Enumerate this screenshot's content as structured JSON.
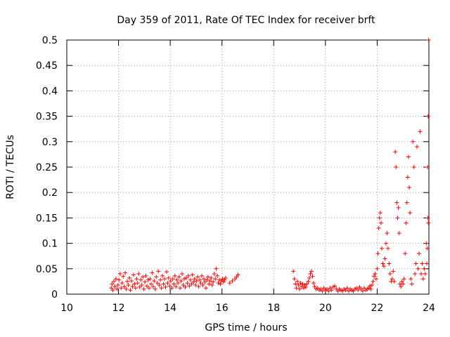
{
  "chart_data": {
    "type": "scatter",
    "title": "Day 359 of 2011, Rate Of TEC Index for receiver brft",
    "xlabel": "GPS time / hours",
    "ylabel": "ROTI / TECUs",
    "xlim": [
      10,
      24
    ],
    "ylim": [
      0,
      0.5
    ],
    "x_ticks": [
      "10",
      "12",
      "14",
      "16",
      "18",
      "20",
      "22",
      "24"
    ],
    "y_ticks": [
      "0",
      "0.05",
      "0.1",
      "0.15",
      "0.2",
      "0.25",
      "0.3",
      "0.35",
      "0.4",
      "0.45",
      "0.5"
    ],
    "grid": true,
    "marker": "+",
    "series": [
      {
        "color": "#ff0000",
        "points": [
          [
            11.72,
            0.012
          ],
          [
            11.75,
            0.02
          ],
          [
            11.78,
            0.008
          ],
          [
            11.82,
            0.025
          ],
          [
            11.86,
            0.015
          ],
          [
            11.9,
            0.03
          ],
          [
            11.94,
            0.01
          ],
          [
            11.98,
            0.018
          ],
          [
            12.02,
            0.028
          ],
          [
            12.06,
            0.04
          ],
          [
            12.1,
            0.012
          ],
          [
            12.14,
            0.022
          ],
          [
            12.18,
            0.035
          ],
          [
            12.22,
            0.015
          ],
          [
            12.26,
            0.042
          ],
          [
            12.3,
            0.01
          ],
          [
            12.34,
            0.025
          ],
          [
            12.38,
            0.018
          ],
          [
            12.42,
            0.032
          ],
          [
            12.46,
            0.008
          ],
          [
            12.5,
            0.026
          ],
          [
            12.54,
            0.015
          ],
          [
            12.58,
            0.038
          ],
          [
            12.62,
            0.02
          ],
          [
            12.66,
            0.012
          ],
          [
            12.7,
            0.03
          ],
          [
            12.74,
            0.022
          ],
          [
            12.78,
            0.04
          ],
          [
            12.82,
            0.014
          ],
          [
            12.86,
            0.028
          ],
          [
            12.9,
            0.018
          ],
          [
            12.94,
            0.034
          ],
          [
            12.98,
            0.01
          ],
          [
            13.02,
            0.024
          ],
          [
            13.06,
            0.036
          ],
          [
            13.1,
            0.016
          ],
          [
            13.14,
            0.028
          ],
          [
            13.18,
            0.012
          ],
          [
            13.22,
            0.03
          ],
          [
            13.26,
            0.02
          ],
          [
            13.3,
            0.042
          ],
          [
            13.34,
            0.015
          ],
          [
            13.38,
            0.026
          ],
          [
            13.42,
            0.01
          ],
          [
            13.46,
            0.034
          ],
          [
            13.5,
            0.022
          ],
          [
            13.54,
            0.045
          ],
          [
            13.58,
            0.018
          ],
          [
            13.62,
            0.028
          ],
          [
            13.66,
            0.012
          ],
          [
            13.7,
            0.036
          ],
          [
            13.74,
            0.02
          ],
          [
            13.78,
            0.03
          ],
          [
            13.82,
            0.014
          ],
          [
            13.86,
            0.044
          ],
          [
            13.9,
            0.022
          ],
          [
            13.94,
            0.032
          ],
          [
            13.98,
            0.016
          ],
          [
            14.02,
            0.026
          ],
          [
            14.06,
            0.012
          ],
          [
            14.1,
            0.03
          ],
          [
            14.14,
            0.02
          ],
          [
            14.18,
            0.036
          ],
          [
            14.22,
            0.015
          ],
          [
            14.26,
            0.028
          ],
          [
            14.3,
            0.022
          ],
          [
            14.34,
            0.034
          ],
          [
            14.38,
            0.012
          ],
          [
            14.42,
            0.026
          ],
          [
            14.46,
            0.04
          ],
          [
            14.5,
            0.018
          ],
          [
            14.54,
            0.03
          ],
          [
            14.58,
            0.014
          ],
          [
            14.62,
            0.032
          ],
          [
            14.66,
            0.022
          ],
          [
            14.7,
            0.036
          ],
          [
            14.74,
            0.016
          ],
          [
            14.78,
            0.028
          ],
          [
            14.82,
            0.02
          ],
          [
            14.86,
            0.038
          ],
          [
            14.9,
            0.024
          ],
          [
            14.94,
            0.03
          ],
          [
            14.98,
            0.018
          ],
          [
            15.02,
            0.026
          ],
          [
            15.06,
            0.034
          ],
          [
            15.1,
            0.015
          ],
          [
            15.14,
            0.028
          ],
          [
            15.18,
            0.022
          ],
          [
            15.22,
            0.036
          ],
          [
            15.26,
            0.018
          ],
          [
            15.3,
            0.03
          ],
          [
            15.34,
            0.024
          ],
          [
            15.38,
            0.012
          ],
          [
            15.42,
            0.028
          ],
          [
            15.46,
            0.034
          ],
          [
            15.5,
            0.02
          ],
          [
            15.54,
            0.026
          ],
          [
            15.58,
            0.032
          ],
          [
            15.62,
            0.018
          ],
          [
            15.66,
            0.024
          ],
          [
            15.7,
            0.04
          ],
          [
            15.74,
            0.03
          ],
          [
            15.78,
            0.05
          ],
          [
            15.82,
            0.036
          ],
          [
            15.86,
            0.022
          ],
          [
            15.9,
            0.028
          ],
          [
            15.94,
            0.02
          ],
          [
            15.98,
            0.026
          ],
          [
            16.02,
            0.03
          ],
          [
            16.06,
            0.024
          ],
          [
            16.1,
            0.028
          ],
          [
            16.14,
            0.032
          ],
          [
            16.3,
            0.022
          ],
          [
            16.4,
            0.026
          ],
          [
            16.5,
            0.03
          ],
          [
            16.56,
            0.034
          ],
          [
            16.62,
            0.038
          ],
          [
            18.76,
            0.045
          ],
          [
            18.8,
            0.03
          ],
          [
            18.84,
            0.02
          ],
          [
            18.88,
            0.012
          ],
          [
            18.92,
            0.025
          ],
          [
            18.96,
            0.018
          ],
          [
            19.0,
            0.01
          ],
          [
            19.04,
            0.022
          ],
          [
            19.08,
            0.015
          ],
          [
            19.12,
            0.02
          ],
          [
            19.16,
            0.012
          ],
          [
            19.2,
            0.018
          ],
          [
            19.24,
            0.014
          ],
          [
            19.28,
            0.02
          ],
          [
            19.34,
            0.025
          ],
          [
            19.38,
            0.032
          ],
          [
            19.42,
            0.04
          ],
          [
            19.46,
            0.045
          ],
          [
            19.5,
            0.035
          ],
          [
            19.54,
            0.022
          ],
          [
            19.58,
            0.015
          ],
          [
            19.64,
            0.01
          ],
          [
            19.7,
            0.012
          ],
          [
            19.76,
            0.008
          ],
          [
            19.82,
            0.01
          ],
          [
            19.88,
            0.006
          ],
          [
            19.94,
            0.012
          ],
          [
            20.0,
            0.008
          ],
          [
            20.06,
            0.01
          ],
          [
            20.12,
            0.006
          ],
          [
            20.18,
            0.012
          ],
          [
            20.24,
            0.008
          ],
          [
            20.3,
            0.014
          ],
          [
            20.36,
            0.016
          ],
          [
            20.42,
            0.01
          ],
          [
            20.48,
            0.006
          ],
          [
            20.54,
            0.01
          ],
          [
            20.6,
            0.008
          ],
          [
            20.66,
            0.006
          ],
          [
            20.72,
            0.01
          ],
          [
            20.78,
            0.008
          ],
          [
            20.84,
            0.012
          ],
          [
            20.9,
            0.006
          ],
          [
            20.96,
            0.01
          ],
          [
            21.02,
            0.008
          ],
          [
            21.08,
            0.006
          ],
          [
            21.14,
            0.01
          ],
          [
            21.2,
            0.012
          ],
          [
            21.26,
            0.008
          ],
          [
            21.32,
            0.014
          ],
          [
            21.38,
            0.01
          ],
          [
            21.44,
            0.006
          ],
          [
            21.5,
            0.012
          ],
          [
            21.56,
            0.008
          ],
          [
            21.62,
            0.01
          ],
          [
            21.68,
            0.012
          ],
          [
            21.72,
            0.016
          ],
          [
            21.76,
            0.01
          ],
          [
            21.8,
            0.018
          ],
          [
            21.84,
            0.025
          ],
          [
            21.88,
            0.035
          ],
          [
            21.92,
            0.04
          ],
          [
            21.96,
            0.03
          ],
          [
            22.0,
            0.05
          ],
          [
            22.03,
            0.08
          ],
          [
            22.06,
            0.13
          ],
          [
            22.09,
            0.15
          ],
          [
            22.12,
            0.16
          ],
          [
            22.15,
            0.14
          ],
          [
            22.18,
            0.09
          ],
          [
            22.22,
            0.06
          ],
          [
            22.26,
            0.055
          ],
          [
            22.3,
            0.07
          ],
          [
            22.34,
            0.1
          ],
          [
            22.38,
            0.12
          ],
          [
            22.42,
            0.09
          ],
          [
            22.46,
            0.06
          ],
          [
            22.5,
            0.04
          ],
          [
            22.54,
            0.025
          ],
          [
            22.58,
            0.03
          ],
          [
            22.62,
            0.045
          ],
          [
            22.66,
            0.025
          ],
          [
            22.7,
            0.28
          ],
          [
            22.73,
            0.25
          ],
          [
            22.76,
            0.18
          ],
          [
            22.79,
            0.15
          ],
          [
            22.82,
            0.17
          ],
          [
            22.85,
            0.12
          ],
          [
            22.88,
            0.02
          ],
          [
            22.92,
            0.015
          ],
          [
            22.96,
            0.025
          ],
          [
            23.0,
            0.02
          ],
          [
            23.04,
            0.03
          ],
          [
            23.08,
            0.08
          ],
          [
            23.12,
            0.14
          ],
          [
            23.15,
            0.18
          ],
          [
            23.18,
            0.23
          ],
          [
            23.21,
            0.27
          ],
          [
            23.24,
            0.21
          ],
          [
            23.27,
            0.16
          ],
          [
            23.3,
            0.03
          ],
          [
            23.34,
            0.02
          ],
          [
            23.38,
            0.3
          ],
          [
            23.42,
            0.25
          ],
          [
            23.46,
            0.04
          ],
          [
            23.5,
            0.06
          ],
          [
            23.54,
            0.29
          ],
          [
            23.58,
            0.05
          ],
          [
            23.62,
            0.08
          ],
          [
            23.66,
            0.32
          ],
          [
            23.7,
            0.04
          ],
          [
            23.74,
            0.06
          ],
          [
            23.78,
            0.03
          ],
          [
            23.82,
            0.05
          ],
          [
            23.86,
            0.04
          ],
          [
            23.9,
            0.1
          ],
          [
            23.92,
            0.06
          ],
          [
            23.94,
            0.09
          ],
          [
            23.95,
            0.25
          ],
          [
            23.96,
            0.15
          ],
          [
            23.97,
            0.35
          ],
          [
            23.98,
            0.14
          ],
          [
            23.99,
            0.5
          ]
        ]
      }
    ]
  }
}
